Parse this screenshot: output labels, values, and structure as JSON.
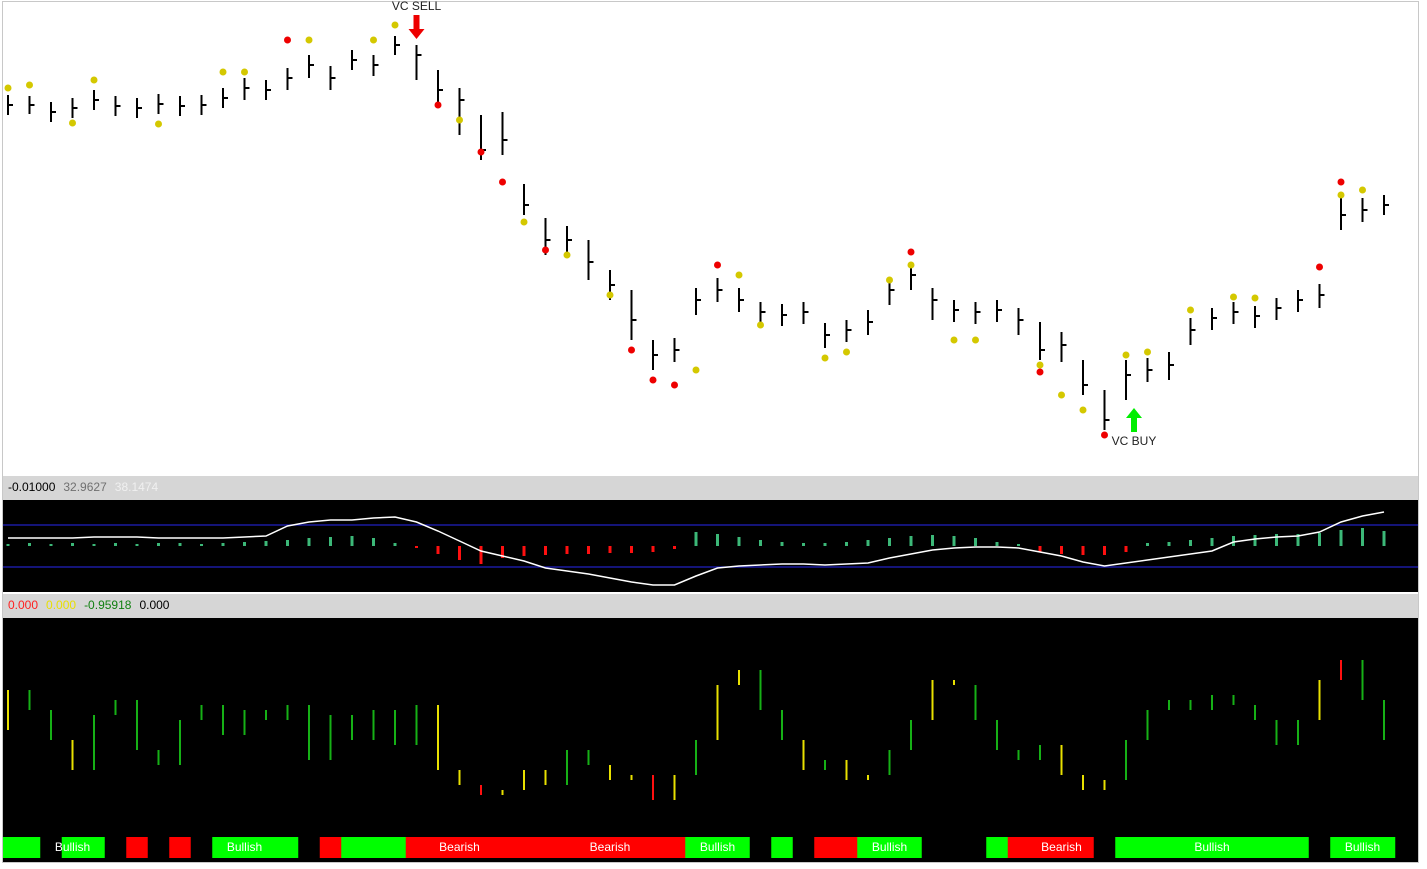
{
  "chart_data": [
    {
      "type": "ohlc",
      "color": "#000000",
      "ylim": [
        5,
        480
      ],
      "high": [
        385,
        384,
        378,
        382,
        390,
        384,
        382,
        386,
        384,
        385,
        392,
        402,
        400,
        412,
        425,
        414,
        430,
        425,
        444,
        435,
        410,
        392,
        365,
        368,
        296,
        262,
        254,
        240,
        210,
        190,
        140,
        142,
        192,
        202,
        192,
        178,
        176,
        178,
        157,
        160,
        170,
        200,
        215,
        192,
        180,
        178,
        180,
        172,
        158,
        148,
        120,
        90,
        120,
        122,
        128,
        162,
        172,
        178,
        174,
        182,
        190,
        196,
        282,
        282,
        285
      ],
      "low": [
        365,
        366,
        358,
        362,
        370,
        364,
        362,
        366,
        364,
        365,
        372,
        380,
        380,
        390,
        402,
        390,
        410,
        404,
        425,
        400,
        375,
        345,
        320,
        325,
        265,
        225,
        228,
        200,
        180,
        140,
        110,
        118,
        165,
        178,
        168,
        156,
        154,
        156,
        132,
        138,
        145,
        175,
        190,
        160,
        158,
        156,
        158,
        145,
        120,
        118,
        85,
        50,
        80,
        98,
        100,
        135,
        150,
        156,
        152,
        160,
        168,
        172,
        250,
        258,
        265
      ],
      "close": [
        375,
        375,
        368,
        372,
        380,
        374,
        372,
        376,
        374,
        375,
        382,
        392,
        390,
        402,
        415,
        402,
        420,
        415,
        435,
        425,
        390,
        380,
        330,
        340,
        275,
        240,
        240,
        218,
        195,
        160,
        125,
        130,
        180,
        190,
        180,
        168,
        165,
        168,
        145,
        150,
        158,
        190,
        205,
        180,
        170,
        168,
        170,
        160,
        130,
        135,
        95,
        60,
        105,
        110,
        115,
        150,
        162,
        168,
        164,
        172,
        180,
        185,
        265,
        270,
        275
      ],
      "yellow_dots": {
        "color": "#d4c800",
        "values": [
          392,
          395,
          null,
          357,
          400,
          null,
          null,
          356,
          null,
          null,
          408,
          408,
          null,
          null,
          440,
          null,
          null,
          440,
          455,
          null,
          null,
          360,
          null,
          null,
          258,
          null,
          225,
          null,
          185,
          null,
          null,
          null,
          110,
          null,
          205,
          155,
          null,
          null,
          122,
          128,
          null,
          200,
          215,
          null,
          140,
          140,
          null,
          null,
          115,
          85,
          70,
          null,
          125,
          128,
          null,
          170,
          null,
          183,
          182,
          null,
          null,
          null,
          285,
          290,
          null
        ]
      },
      "red_dots": {
        "color": "#ee0000",
        "values": [
          null,
          null,
          null,
          null,
          null,
          null,
          null,
          null,
          null,
          null,
          null,
          null,
          null,
          440,
          null,
          null,
          null,
          null,
          null,
          null,
          375,
          null,
          328,
          298,
          null,
          230,
          null,
          null,
          null,
          130,
          100,
          95,
          null,
          215,
          null,
          null,
          null,
          null,
          null,
          null,
          null,
          null,
          228,
          null,
          null,
          null,
          null,
          null,
          108,
          null,
          null,
          45,
          null,
          null,
          null,
          null,
          null,
          null,
          null,
          null,
          null,
          213,
          298,
          null,
          null
        ]
      },
      "annotations": [
        {
          "text": "VC SELL",
          "index": 19,
          "color": "#ee0000",
          "direction": "down"
        },
        {
          "text": "VC BUY",
          "index": 52,
          "color": "#00ee00",
          "direction": "up"
        }
      ]
    },
    {
      "type": "macd",
      "header": [
        {
          "text": "-0.01000",
          "color": "#000000"
        },
        {
          "text": "32.9627",
          "color": "#707070"
        },
        {
          "text": "38.1474",
          "color": "#f0f0f0"
        }
      ],
      "ylim": [
        -46,
        46
      ],
      "levels": [
        21,
        -21
      ],
      "level_color": "#1a1aa0",
      "histogram": [
        2,
        3,
        2,
        3,
        2,
        3,
        2,
        3,
        3,
        2,
        3,
        4,
        5,
        6,
        8,
        9,
        10,
        8,
        3,
        -2,
        -8,
        -14,
        -18,
        -12,
        -10,
        -9,
        -8,
        -8,
        -7,
        -7,
        -6,
        -3,
        14,
        12,
        9,
        6,
        4,
        3,
        3,
        4,
        6,
        8,
        10,
        11,
        10,
        8,
        4,
        2,
        -6,
        -8,
        -9,
        -9,
        -6,
        3,
        4,
        6,
        8,
        10,
        11,
        12,
        12,
        13,
        16,
        18,
        15
      ],
      "up_color": "#3cb878",
      "down_color": "#ff1010",
      "line_color": "#ffffff",
      "line": [
        8,
        8,
        8,
        8,
        9,
        9,
        9,
        8,
        8,
        8,
        8,
        9,
        10,
        20,
        24,
        26,
        26,
        28,
        29,
        24,
        15,
        5,
        -5,
        -10,
        -15,
        -22,
        -25,
        -28,
        -32,
        -36,
        -39,
        -39,
        -30,
        -22,
        -20,
        -19,
        -18,
        -18,
        -19,
        -18,
        -17,
        -12,
        -8,
        -4,
        -2,
        -1,
        -1,
        -2,
        -6,
        -10,
        -16,
        -20,
        -17,
        -14,
        -11,
        -8,
        -5,
        4,
        7,
        9,
        10,
        14,
        24,
        30,
        34
      ]
    },
    {
      "type": "oscillator",
      "header": [
        {
          "text": "0.000",
          "color": "#ff2020"
        },
        {
          "text": "0.000",
          "color": "#e8e000"
        },
        {
          "text": "-0.95918",
          "color": "#108010"
        },
        {
          "text": "0.000",
          "color": "#000000"
        }
      ],
      "ylim": [
        -105,
        110
      ],
      "values": [
        40,
        20,
        -10,
        -40,
        15,
        30,
        -20,
        -35,
        10,
        25,
        -5,
        20,
        10,
        25,
        -30,
        15,
        -10,
        20,
        -15,
        25,
        -40,
        -55,
        -65,
        -60,
        -40,
        -55,
        -20,
        -35,
        -50,
        -45,
        -70,
        -45,
        -10,
        45,
        60,
        20,
        -10,
        -40,
        -30,
        -50,
        -45,
        -20,
        10,
        50,
        45,
        10,
        -20,
        -30,
        -15,
        -45,
        -60,
        -50,
        -10,
        20,
        30,
        20,
        35,
        25,
        10,
        -15,
        10,
        50,
        70,
        30,
        -10
      ],
      "colors": {
        "calm": "#16b016",
        "strong": "#e8e000",
        "extreme": "#ff1010"
      },
      "regime": [
        "#00ff00",
        "#00ff00",
        "#000000",
        "#00ff00",
        "#00ff00",
        "#000000",
        "#ff0000",
        "#000000",
        "#ff0000",
        "#000000",
        "#00ff00",
        "#00ff00",
        "#00ff00",
        "#00ff00",
        "#000000",
        "#ff0000",
        "#00ff00",
        "#00ff00",
        "#00ff00",
        "#ff0000",
        "#ff0000",
        "#ff0000",
        "#ff0000",
        "#ff0000",
        "#ff0000",
        "#ff0000",
        "#ff0000",
        "#ff0000",
        "#ff0000",
        "#ff0000",
        "#ff0000",
        "#ff0000",
        "#00ff00",
        "#00ff00",
        "#00ff00",
        "#000000",
        "#00ff00",
        "#000000",
        "#ff0000",
        "#ff0000",
        "#00ff00",
        "#00ff00",
        "#00ff00",
        "#000000",
        "#000000",
        "#000000",
        "#00ff00",
        "#ff0000",
        "#ff0000",
        "#ff0000",
        "#ff0000",
        "#000000",
        "#00ff00",
        "#00ff00",
        "#00ff00",
        "#00ff00",
        "#00ff00",
        "#00ff00",
        "#00ff00",
        "#00ff00",
        "#00ff00",
        "#000000",
        "#00ff00",
        "#00ff00",
        "#00ff00"
      ],
      "regime_labels": [
        {
          "text": "Bullish",
          "index": 3
        },
        {
          "text": "Bullish",
          "index": 11
        },
        {
          "text": "Bearish",
          "index": 21
        },
        {
          "text": "Bearish",
          "index": 28
        },
        {
          "text": "Bullish",
          "index": 33
        },
        {
          "text": "Bullish",
          "index": 41
        },
        {
          "text": "Bearish",
          "index": 49
        },
        {
          "text": "Bullish",
          "index": 56
        },
        {
          "text": "Bullish",
          "index": 63
        }
      ]
    }
  ]
}
